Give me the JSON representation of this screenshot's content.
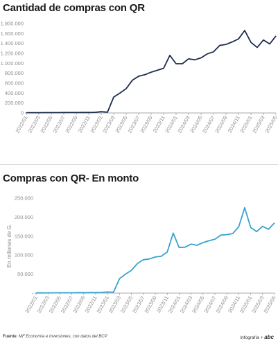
{
  "colors": {
    "chart1_line": "#1c2a4f",
    "chart2_line": "#37a3d0",
    "axis": "#8c8c8c",
    "grid": "#e6e6e6"
  },
  "footer": {
    "source_label": "Fuente",
    "source_text": ": MF Economía e Inversiones, con datos del BCP",
    "brand_label": "Infografía +",
    "brand_logo": "abc"
  },
  "chart_data": [
    {
      "type": "line",
      "title": "Cantidad de compras con QR",
      "xlabel": "",
      "ylabel": "",
      "x": [
        "2022/01",
        "2022/02",
        "2022/03",
        "2022/04",
        "2022/05",
        "2022/06",
        "2022/07",
        "2022/08",
        "2022/09",
        "2022/10",
        "2022/11",
        "2022/12",
        "2023/01",
        "2023/02",
        "2023/03",
        "2023/04",
        "2023/05",
        "2023/06",
        "2023/07",
        "2023/08",
        "2023/09",
        "2023/10",
        "2023/11",
        "2023/12",
        "2024/01",
        "2024/02",
        "2024/03",
        "2024/04",
        "2024/05",
        "2024/06",
        "2024/07",
        "2024/08",
        "2024/09",
        "2024/10",
        "2024/11",
        "2024/12",
        "2025/01",
        "2025/02",
        "2025/03",
        "2025/04",
        "2025/05"
      ],
      "x_tick_labels": [
        "2022/01",
        "2022/03",
        "2022/05",
        "2022/07",
        "2022/09",
        "2022/11",
        "2023/01",
        "2023/03",
        "2023/05",
        "2023/07",
        "2023/09",
        "2023/11",
        "2024/01",
        "2024/03",
        "2024/05",
        "2024/07",
        "2024/09",
        "2024/11",
        "2025/01",
        "2025/03",
        "2025/05"
      ],
      "y_tick_labels": [
        "0",
        "200.000",
        "400.000",
        "600.000",
        "800.000",
        "1.000.000",
        "1.200.000",
        "1.400.000",
        "1.600.000",
        "1.800.000"
      ],
      "series": [
        {
          "values": [
            5000,
            5000,
            6000,
            7000,
            7000,
            7500,
            8000,
            8500,
            9000,
            10000,
            10000,
            12000,
            25000,
            15000,
            320000,
            400000,
            490000,
            660000,
            740000,
            770000,
            820000,
            860000,
            900000,
            1160000,
            990000,
            990000,
            1090000,
            1070000,
            1110000,
            1190000,
            1230000,
            1360000,
            1380000,
            1430000,
            1490000,
            1660000,
            1420000,
            1320000,
            1470000,
            1390000,
            1550000
          ]
        }
      ],
      "ylim": [
        0,
        1800000
      ],
      "grid": false
    },
    {
      "type": "line",
      "title": "Compras con QR- En monto",
      "xlabel": "",
      "ylabel": "En millones de G.",
      "x": [
        "2022/01",
        "2022/02",
        "2022/03",
        "2022/04",
        "2022/05",
        "2022/06",
        "2022/07",
        "2022/08",
        "2022/09",
        "2022/10",
        "2022/11",
        "2022/12",
        "2023/01",
        "2023/02",
        "2023/03",
        "2023/04",
        "2023/05",
        "2023/06",
        "2023/07",
        "2023/08",
        "2023/09",
        "2023/10",
        "2023/11",
        "2023/12",
        "2024/01",
        "2024/02",
        "2024/03",
        "2024/04",
        "2024/05",
        "2024/06",
        "2024/07",
        "2024/08",
        "2024/09",
        "2024/10",
        "2024/11",
        "2024/12",
        "2025/01",
        "2025/02",
        "2025/03",
        "2025/04",
        "2025/05"
      ],
      "x_tick_labels": [
        "2022/01",
        "2022/03",
        "2022/05",
        "2022/07",
        "2022/09",
        "2022/11",
        "2023/01",
        "2023/03",
        "2023/05",
        "2023/07",
        "2023/09",
        "2023/11",
        "2024/01",
        "2024/03",
        "2024/05",
        "2024/07",
        "2024/09",
        "2024/11",
        "2025/01",
        "2025/03",
        "2025/05"
      ],
      "y_tick_labels": [
        "-",
        "50.000",
        "100.000",
        "150.000",
        "200.000",
        "250.000"
      ],
      "series": [
        {
          "values": [
            500,
            500,
            700,
            800,
            900,
            1000,
            1000,
            1200,
            1300,
            1500,
            1600,
            2000,
            3000,
            2500,
            38000,
            50000,
            60000,
            78000,
            88000,
            90000,
            95000,
            97000,
            108000,
            158000,
            120000,
            121000,
            129000,
            126000,
            133000,
            138000,
            142000,
            153000,
            154000,
            157000,
            175000,
            225000,
            173000,
            162000,
            176000,
            168000,
            185000
          ]
        }
      ],
      "ylim": [
        0,
        250000
      ],
      "grid": false
    }
  ]
}
